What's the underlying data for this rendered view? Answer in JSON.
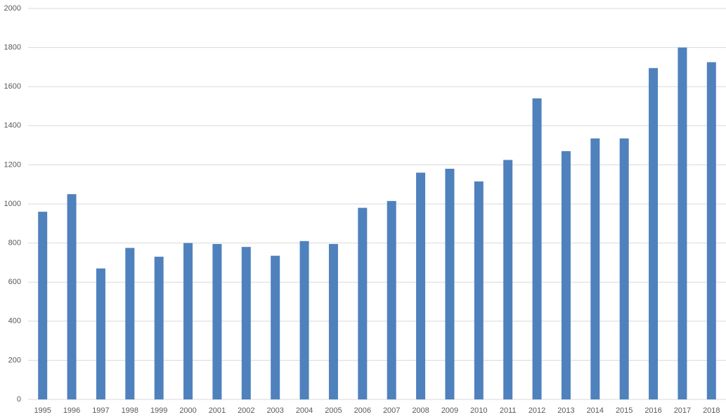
{
  "chart_data": {
    "type": "bar",
    "categories": [
      "1995",
      "1996",
      "1997",
      "1998",
      "1999",
      "2000",
      "2001",
      "2002",
      "2003",
      "2004",
      "2005",
      "2006",
      "2007",
      "2008",
      "2009",
      "2010",
      "2011",
      "2012",
      "2013",
      "2014",
      "2015",
      "2016",
      "2017",
      "2018"
    ],
    "values": [
      960,
      1050,
      670,
      775,
      730,
      800,
      795,
      780,
      735,
      810,
      795,
      980,
      1015,
      1160,
      1180,
      1115,
      1225,
      1540,
      1270,
      1335,
      1335,
      1695,
      1800,
      1725
    ],
    "color": "#4f81bd",
    "ylim": [
      0,
      2000
    ],
    "yticks": [
      0,
      200,
      400,
      600,
      800,
      1000,
      1200,
      1400,
      1600,
      1800,
      2000
    ],
    "grid": true
  }
}
